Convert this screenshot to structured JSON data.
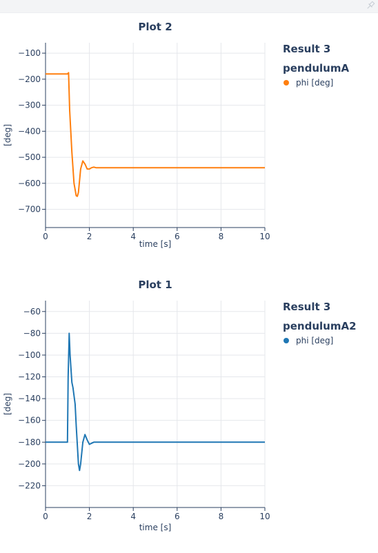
{
  "toolbar": {
    "pin_icon": "pin-icon"
  },
  "chart_data": [
    {
      "type": "line",
      "title": "Plot 2",
      "xlabel": "time [s]",
      "ylabel": "[deg]",
      "xlim": [
        0,
        10
      ],
      "ylim": [
        -770,
        -60
      ],
      "xticks": [
        0,
        2,
        4,
        6,
        8,
        10
      ],
      "yticks": [
        -100,
        -200,
        -300,
        -400,
        -500,
        -600,
        -700
      ],
      "grid": true,
      "legend_position": "top-right",
      "legend_groups": [
        "Result 3",
        "pendulumA"
      ],
      "series": [
        {
          "name": "phi [deg]",
          "color": "#ff7f0e",
          "x": [
            0,
            0.5,
            1.0,
            1.05,
            1.1,
            1.2,
            1.3,
            1.4,
            1.45,
            1.5,
            1.55,
            1.6,
            1.7,
            1.8,
            1.9,
            2.0,
            2.1,
            2.2,
            2.3,
            2.5,
            3,
            4,
            5,
            6,
            7,
            8,
            9,
            10
          ],
          "y": [
            -180,
            -180,
            -180,
            -175,
            -320,
            -480,
            -600,
            -648,
            -650,
            -635,
            -590,
            -545,
            -514,
            -526,
            -545,
            -545,
            -540,
            -538,
            -540,
            -540,
            -540,
            -540,
            -540,
            -540,
            -540,
            -540,
            -540,
            -540
          ]
        }
      ]
    },
    {
      "type": "line",
      "title": "Plot 1",
      "xlabel": "time [s]",
      "ylabel": "[deg]",
      "xlim": [
        0,
        10
      ],
      "ylim": [
        -240,
        -50
      ],
      "xticks": [
        0,
        2,
        4,
        6,
        8,
        10
      ],
      "yticks": [
        -60,
        -80,
        -100,
        -120,
        -140,
        -160,
        -180,
        -200,
        -220
      ],
      "grid": true,
      "legend_position": "top-right",
      "legend_groups": [
        "Result 3",
        "pendulumA2"
      ],
      "series": [
        {
          "name": "phi [deg]",
          "color": "#1f77b4",
          "x": [
            0,
            0.5,
            1.0,
            1.03,
            1.08,
            1.12,
            1.2,
            1.25,
            1.35,
            1.4,
            1.5,
            1.55,
            1.6,
            1.7,
            1.8,
            1.9,
            2.0,
            2.1,
            2.2,
            2.3,
            2.5,
            3,
            4,
            5,
            6,
            7,
            8,
            9,
            10
          ],
          "y": [
            -180,
            -180,
            -180,
            -120,
            -80,
            -100,
            -125,
            -130,
            -145,
            -165,
            -200,
            -206,
            -200,
            -180,
            -173,
            -178,
            -182,
            -181,
            -180,
            -180,
            -180,
            -180,
            -180,
            -180,
            -180,
            -180,
            -180,
            -180,
            -180
          ]
        }
      ]
    }
  ]
}
